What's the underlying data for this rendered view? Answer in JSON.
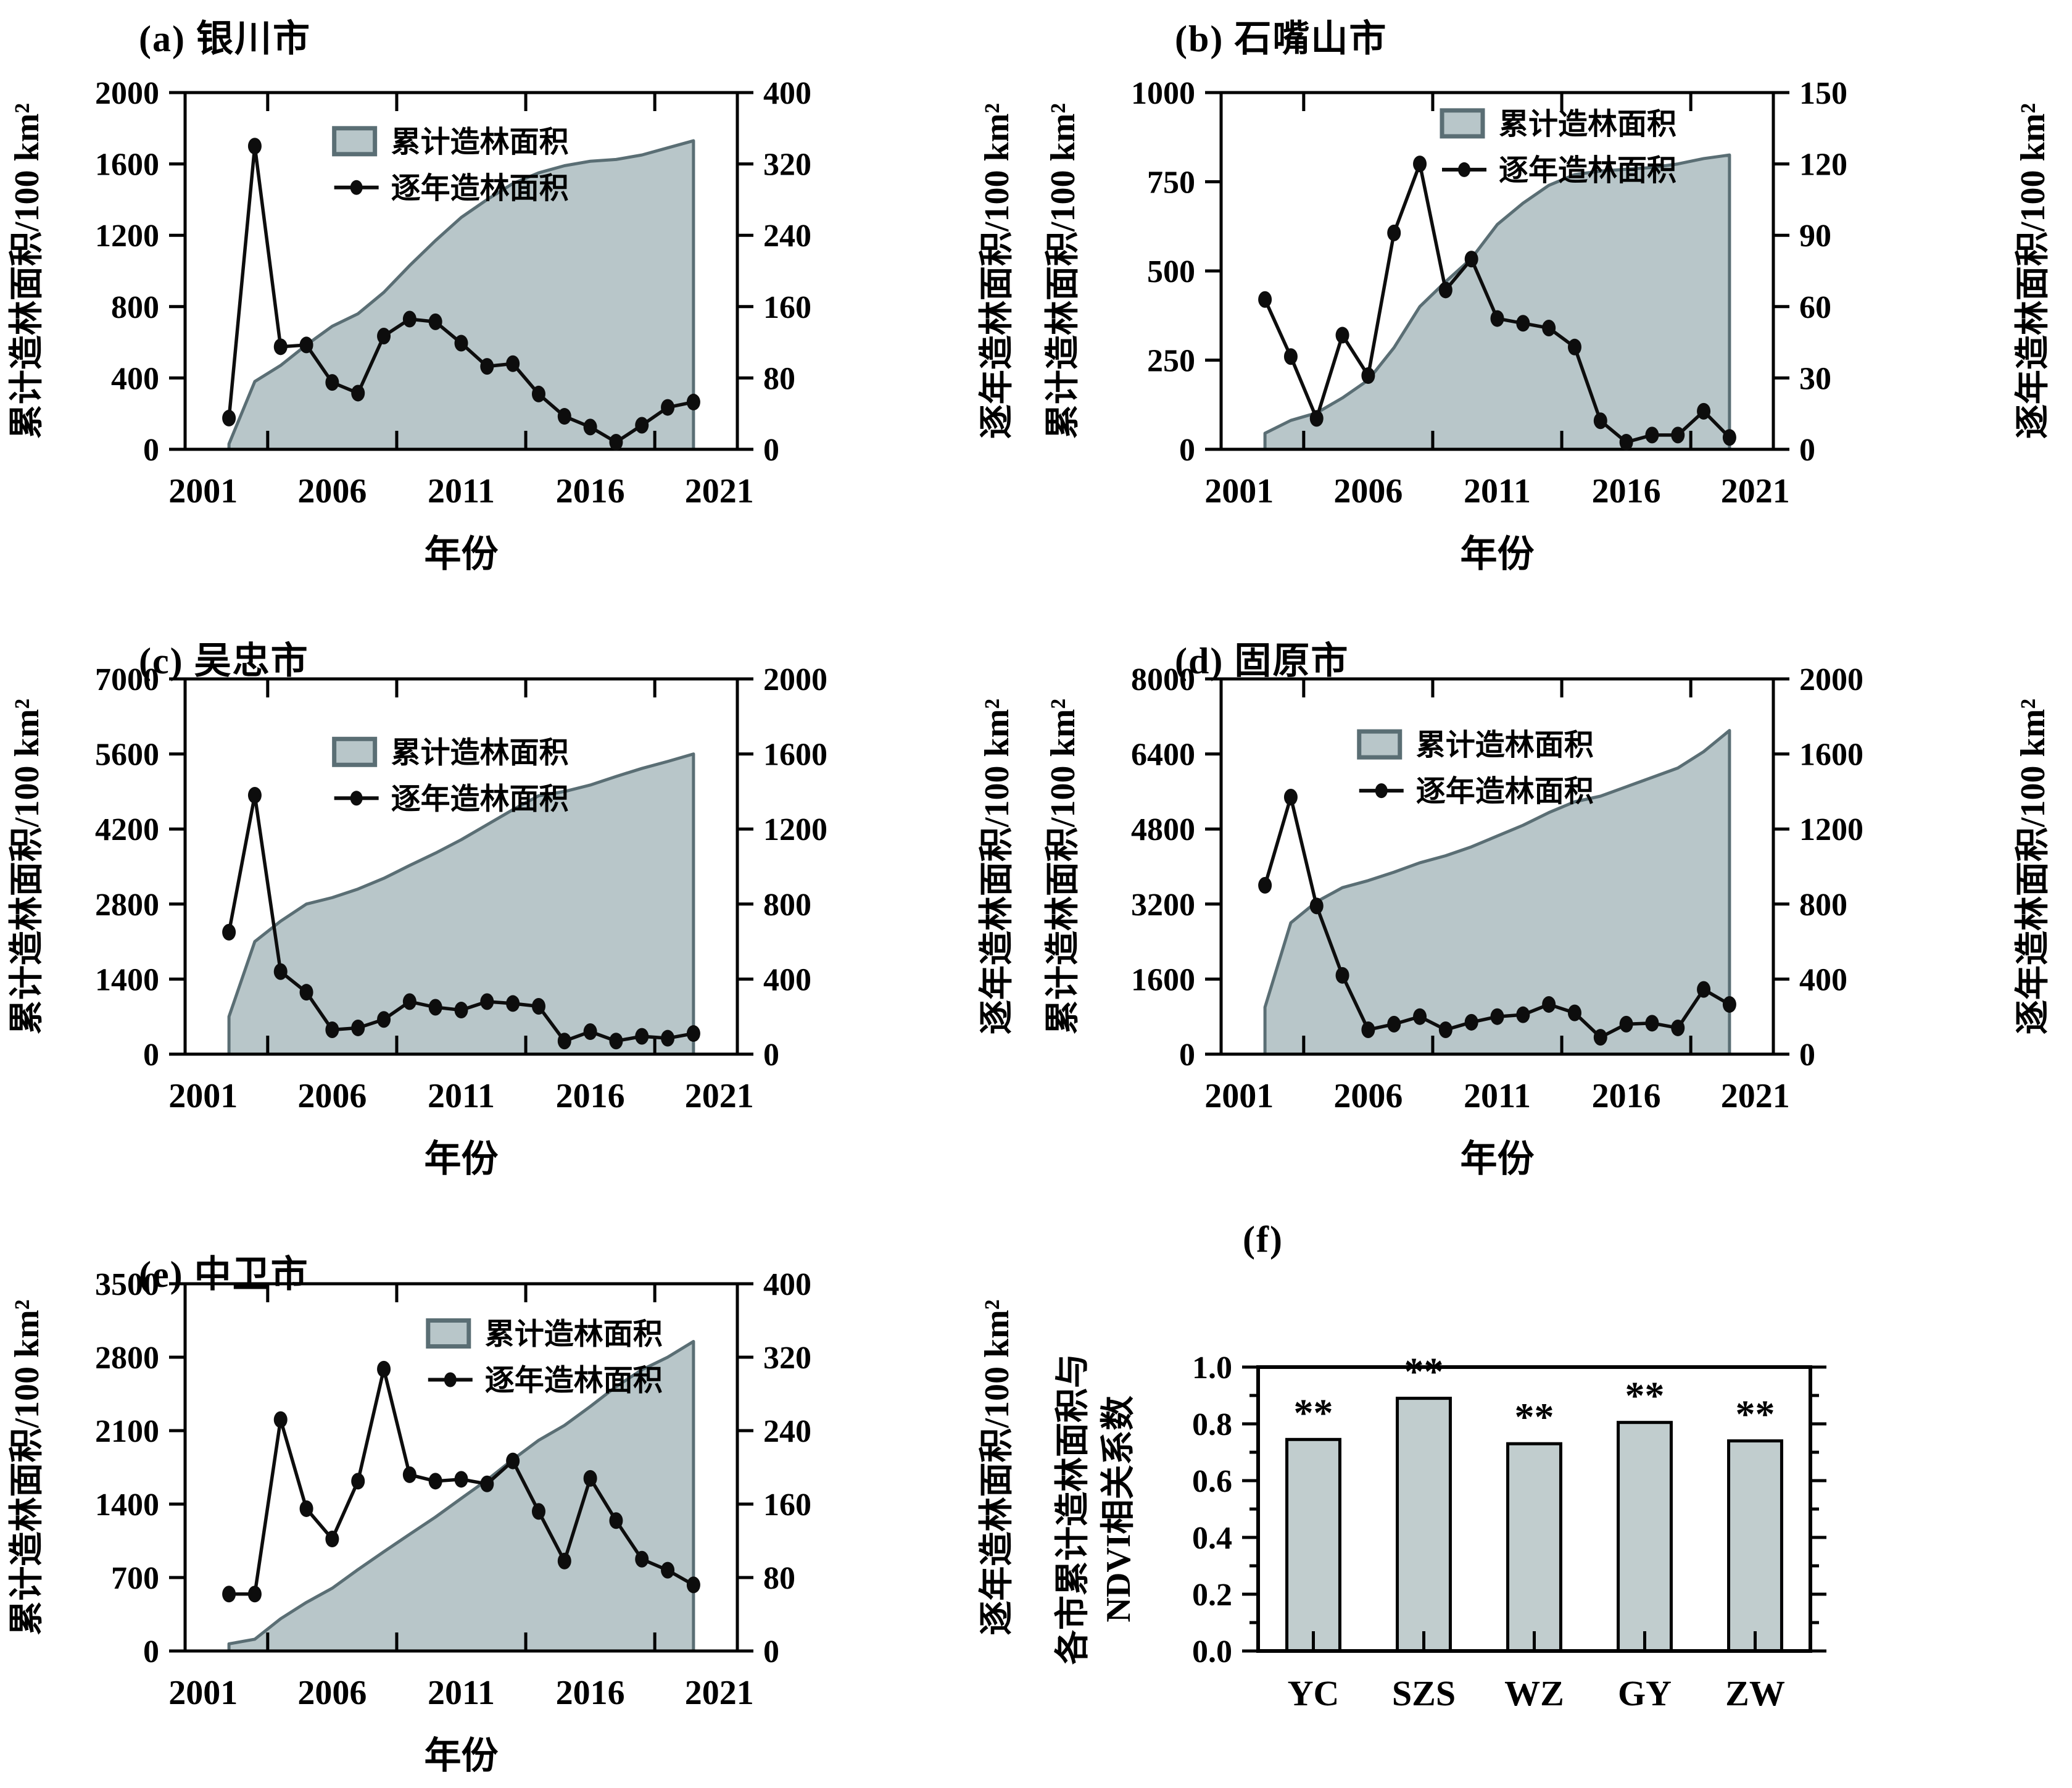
{
  "figure": {
    "background": "#ffffff",
    "colors": {
      "area_fill": "#b8c6c9",
      "area_stroke": "#5a6e74",
      "line_color": "#0d0d0d",
      "bar_fill": "#c1cdce",
      "axis_color": "#000000"
    },
    "legend_labels": {
      "cumulative": "累计造林面积",
      "annual": "逐年造林面积"
    },
    "xlabel": "年份",
    "left_ylabel": "累计造林面积/100 km²",
    "right_ylabel": "逐年造林面积/100 km²"
  },
  "chart_data": [
    {
      "id": "a",
      "type": "area+line",
      "title": "(a) 银川市",
      "xlabel": "年份",
      "years": [
        2002,
        2003,
        2004,
        2005,
        2006,
        2007,
        2008,
        2009,
        2010,
        2011,
        2012,
        2013,
        2014,
        2015,
        2016,
        2017,
        2018,
        2019,
        2020
      ],
      "xticks": [
        2001,
        2006,
        2011,
        2016,
        2021
      ],
      "xlim": [
        2000.3,
        2021.7
      ],
      "left": {
        "label": "累计造林面积/100 km²",
        "lim": [
          0,
          2000
        ],
        "ticks": [
          0,
          400,
          800,
          1200,
          1600,
          2000
        ]
      },
      "right": {
        "label": "逐年造林面积/100 km²",
        "lim": [
          0,
          400
        ],
        "ticks": [
          0,
          80,
          160,
          240,
          320,
          400
        ]
      },
      "series": [
        {
          "name": "累计造林面积",
          "axis": "left",
          "style": "area",
          "values": [
            30,
            380,
            470,
            585,
            690,
            760,
            880,
            1030,
            1170,
            1300,
            1400,
            1490,
            1550,
            1590,
            1615,
            1625,
            1650,
            1690,
            1730
          ]
        },
        {
          "name": "逐年造林面积",
          "axis": "right",
          "style": "line+marker",
          "values": [
            35,
            340,
            115,
            117,
            75,
            63,
            127,
            146,
            143,
            119,
            93,
            96,
            62,
            37,
            25,
            8,
            27,
            47,
            53
          ]
        }
      ],
      "legend_pos": [
        0.27,
        0.1
      ]
    },
    {
      "id": "b",
      "type": "area+line",
      "title": "(b) 石嘴山市",
      "xlabel": "年份",
      "years": [
        2002,
        2003,
        2004,
        2005,
        2006,
        2007,
        2008,
        2009,
        2010,
        2011,
        2012,
        2013,
        2014,
        2015,
        2016,
        2017,
        2018,
        2019,
        2020
      ],
      "xticks": [
        2001,
        2006,
        2011,
        2016,
        2021
      ],
      "xlim": [
        2000.3,
        2021.7
      ],
      "left": {
        "label": "累计造林面积/100 km²",
        "lim": [
          0,
          1000
        ],
        "ticks": [
          0,
          250,
          500,
          750,
          1000
        ]
      },
      "right": {
        "label": "逐年造林面积/100 km²",
        "lim": [
          0,
          150
        ],
        "ticks": [
          0,
          30,
          60,
          90,
          120,
          150
        ]
      },
      "series": [
        {
          "name": "累计造林面积",
          "axis": "left",
          "style": "area",
          "values": [
            45,
            81,
            102,
            144,
            194,
            285,
            400,
            470,
            535,
            630,
            690,
            740,
            770,
            780,
            785,
            790,
            800,
            815,
            825
          ]
        },
        {
          "name": "逐年造林面积",
          "axis": "right",
          "style": "line+marker",
          "values": [
            63,
            39,
            13,
            48,
            31,
            91,
            120,
            67,
            80,
            55,
            53,
            51,
            43,
            12,
            3,
            6,
            6,
            16,
            5
          ]
        }
      ],
      "legend_pos": [
        0.4,
        0.05
      ]
    },
    {
      "id": "c",
      "type": "area+line",
      "title": "(c) 吴忠市",
      "xlabel": "年份",
      "years": [
        2002,
        2003,
        2004,
        2005,
        2006,
        2007,
        2008,
        2009,
        2010,
        2011,
        2012,
        2013,
        2014,
        2015,
        2016,
        2017,
        2018,
        2019,
        2020
      ],
      "xticks": [
        2001,
        2006,
        2011,
        2016,
        2021
      ],
      "xlim": [
        2000.3,
        2021.7
      ],
      "left": {
        "label": "累计造林面积/100 km²",
        "lim": [
          0,
          7000
        ],
        "ticks": [
          0,
          1400,
          2800,
          4200,
          5600,
          7000
        ]
      },
      "right": {
        "label": "逐年造林面积/100 km²",
        "lim": [
          0,
          2000
        ],
        "ticks": [
          0,
          400,
          800,
          1200,
          1600,
          2000
        ]
      },
      "series": [
        {
          "name": "累计造林面积",
          "axis": "left",
          "style": "area",
          "values": [
            700,
            2100,
            2480,
            2800,
            2920,
            3080,
            3280,
            3520,
            3750,
            4000,
            4280,
            4560,
            4820,
            4900,
            5020,
            5180,
            5330,
            5460,
            5600
          ]
        },
        {
          "name": "逐年造林面积",
          "axis": "right",
          "style": "line+marker",
          "values": [
            650,
            1380,
            440,
            330,
            130,
            140,
            185,
            280,
            250,
            235,
            280,
            270,
            255,
            70,
            120,
            70,
            95,
            85,
            110
          ]
        }
      ],
      "legend_pos": [
        0.27,
        0.16
      ]
    },
    {
      "id": "d",
      "type": "area+line",
      "title": "(d) 固原市",
      "xlabel": "年份",
      "years": [
        2002,
        2003,
        2004,
        2005,
        2006,
        2007,
        2008,
        2009,
        2010,
        2011,
        2012,
        2013,
        2014,
        2015,
        2016,
        2017,
        2018,
        2019,
        2020
      ],
      "xticks": [
        2001,
        2006,
        2011,
        2016,
        2021
      ],
      "xlim": [
        2000.3,
        2021.7
      ],
      "left": {
        "label": "累计造林面积/100 km²",
        "lim": [
          0,
          8000
        ],
        "ticks": [
          0,
          1600,
          3200,
          4800,
          6400,
          8000
        ]
      },
      "right": {
        "label": "逐年造林面积/100 km²",
        "lim": [
          0,
          2000
        ],
        "ticks": [
          0,
          400,
          800,
          1200,
          1600,
          2000
        ]
      },
      "series": [
        {
          "name": "累计造林面积",
          "axis": "left",
          "style": "area",
          "values": [
            1000,
            2800,
            3250,
            3550,
            3700,
            3880,
            4080,
            4230,
            4420,
            4650,
            4880,
            5150,
            5380,
            5500,
            5700,
            5900,
            6100,
            6450,
            6900
          ]
        },
        {
          "name": "逐年造林面积",
          "axis": "right",
          "style": "line+marker",
          "values": [
            900,
            1370,
            790,
            420,
            130,
            160,
            200,
            130,
            170,
            200,
            210,
            265,
            220,
            90,
            160,
            165,
            140,
            345,
            265
          ]
        }
      ],
      "legend_pos": [
        0.25,
        0.14
      ]
    },
    {
      "id": "e",
      "type": "area+line",
      "title": "(e) 中卫市",
      "xlabel": "年份",
      "years": [
        2002,
        2003,
        2004,
        2005,
        2006,
        2007,
        2008,
        2009,
        2010,
        2011,
        2012,
        2013,
        2014,
        2015,
        2016,
        2017,
        2018,
        2019,
        2020
      ],
      "xticks": [
        2001,
        2006,
        2011,
        2016,
        2021
      ],
      "xlim": [
        2000.3,
        2021.7
      ],
      "left": {
        "label": "累计造林面积/100 km²",
        "lim": [
          0,
          3500
        ],
        "ticks": [
          0,
          700,
          1400,
          2100,
          2800,
          3500
        ]
      },
      "right": {
        "label": "逐年造林面积/100 km²",
        "lim": [
          0,
          400
        ],
        "ticks": [
          0,
          80,
          160,
          240,
          320,
          400
        ]
      },
      "series": [
        {
          "name": "累计造林面积",
          "axis": "left",
          "style": "area",
          "values": [
            68,
            112,
            307,
            463,
            598,
            776,
            946,
            1112,
            1276,
            1454,
            1630,
            1825,
            2008,
            2150,
            2330,
            2520,
            2680,
            2800,
            2950
          ]
        },
        {
          "name": "逐年造林面积",
          "axis": "right",
          "style": "line+marker",
          "values": [
            62,
            62,
            252,
            155,
            122,
            185,
            307,
            192,
            185,
            187,
            182,
            207,
            152,
            98,
            188,
            142,
            100,
            88,
            72
          ]
        }
      ],
      "legend_pos": [
        0.44,
        0.1
      ]
    },
    {
      "id": "f",
      "type": "bar",
      "title": "(f)",
      "categories": [
        "YC",
        "SZS",
        "WZ",
        "GY",
        "ZW"
      ],
      "values": [
        0.745,
        0.89,
        0.73,
        0.805,
        0.74
      ],
      "annotations": [
        "**",
        "**",
        "**",
        "**",
        "**"
      ],
      "ylabel_lines": [
        "各市累计造林面积与",
        "NDVI相关系数"
      ],
      "ylim": [
        0,
        1
      ],
      "yticks": [
        0,
        0.2,
        0.4,
        0.6,
        0.8,
        1.0
      ],
      "ytick_labels": [
        "0.0",
        "0.2",
        "0.4",
        "0.6",
        "0.8",
        "1.0"
      ],
      "yminor_step": 0.1
    }
  ]
}
